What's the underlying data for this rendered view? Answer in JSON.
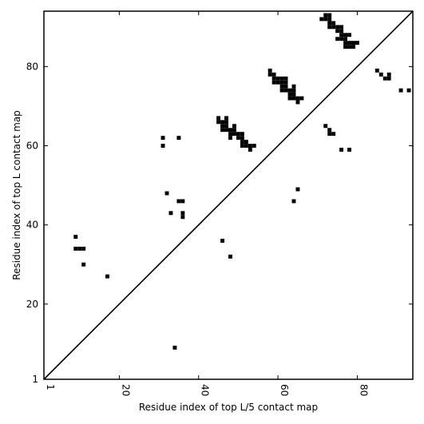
{
  "chart_data": {
    "type": "heatmap",
    "title": "",
    "xlabel": "Residue index of top L/5 contact map",
    "ylabel": "Residue index of top L contact map",
    "xlim": [
      1,
      94
    ],
    "ylim": [
      1,
      94
    ],
    "x_ticks": [
      1,
      20,
      40,
      60,
      80
    ],
    "y_ticks": [
      1,
      20,
      40,
      60,
      80
    ],
    "grid": false,
    "colors": {
      "cell": "#000000",
      "background": "#ffffff",
      "diagonal": "#000000",
      "frame": "#000000"
    },
    "diagonal": {
      "from": [
        1,
        1
      ],
      "to": [
        94,
        94
      ]
    },
    "contacts": [
      [
        9,
        37
      ],
      [
        9,
        34
      ],
      [
        10,
        34
      ],
      [
        11,
        34
      ],
      [
        11,
        30
      ],
      [
        17,
        27
      ],
      [
        31,
        62
      ],
      [
        31,
        60
      ],
      [
        32,
        48
      ],
      [
        33,
        43
      ],
      [
        35,
        62
      ],
      [
        35,
        46
      ],
      [
        36,
        46
      ],
      [
        36,
        43
      ],
      [
        36,
        42
      ],
      [
        45,
        67
      ],
      [
        45,
        66
      ],
      [
        46,
        66
      ],
      [
        46,
        65
      ],
      [
        46,
        64
      ],
      [
        46,
        36
      ],
      [
        47,
        67
      ],
      [
        47,
        66
      ],
      [
        47,
        65
      ],
      [
        47,
        64
      ],
      [
        48,
        64
      ],
      [
        48,
        63
      ],
      [
        48,
        62
      ],
      [
        48,
        32
      ],
      [
        49,
        65
      ],
      [
        49,
        64
      ],
      [
        49,
        63
      ],
      [
        50,
        63
      ],
      [
        50,
        62
      ],
      [
        51,
        63
      ],
      [
        51,
        62
      ],
      [
        51,
        61
      ],
      [
        51,
        60
      ],
      [
        52,
        61
      ],
      [
        52,
        60
      ],
      [
        53,
        60
      ],
      [
        53,
        59
      ],
      [
        54,
        60
      ],
      [
        58,
        79
      ],
      [
        58,
        78
      ],
      [
        59,
        78
      ],
      [
        59,
        77
      ],
      [
        59,
        76
      ],
      [
        60,
        77
      ],
      [
        60,
        76
      ],
      [
        61,
        77
      ],
      [
        61,
        76
      ],
      [
        61,
        75
      ],
      [
        61,
        74
      ],
      [
        62,
        77
      ],
      [
        62,
        76
      ],
      [
        62,
        75
      ],
      [
        62,
        74
      ],
      [
        63,
        74
      ],
      [
        63,
        73
      ],
      [
        63,
        72
      ],
      [
        64,
        75
      ],
      [
        64,
        74
      ],
      [
        64,
        73
      ],
      [
        64,
        72
      ],
      [
        64,
        46
      ],
      [
        65,
        72
      ],
      [
        65,
        71
      ],
      [
        65,
        49
      ],
      [
        66,
        72
      ],
      [
        71,
        92
      ],
      [
        72,
        93
      ],
      [
        72,
        92
      ],
      [
        72,
        65
      ],
      [
        73,
        93
      ],
      [
        73,
        92
      ],
      [
        73,
        91
      ],
      [
        73,
        90
      ],
      [
        73,
        64
      ],
      [
        73,
        63
      ],
      [
        74,
        91
      ],
      [
        74,
        90
      ],
      [
        74,
        63
      ],
      [
        75,
        90
      ],
      [
        75,
        89
      ],
      [
        75,
        87
      ],
      [
        76,
        90
      ],
      [
        76,
        89
      ],
      [
        76,
        88
      ],
      [
        76,
        87
      ],
      [
        76,
        59
      ],
      [
        77,
        88
      ],
      [
        77,
        87
      ],
      [
        77,
        86
      ],
      [
        77,
        85
      ],
      [
        78,
        88
      ],
      [
        78,
        86
      ],
      [
        78,
        85
      ],
      [
        78,
        59
      ],
      [
        79,
        86
      ],
      [
        79,
        85
      ],
      [
        80,
        86
      ],
      [
        85,
        79
      ],
      [
        86,
        78
      ],
      [
        87,
        77
      ],
      [
        88,
        78
      ],
      [
        88,
        77
      ],
      [
        91,
        74
      ],
      [
        93,
        74
      ],
      [
        34,
        9
      ]
    ]
  }
}
